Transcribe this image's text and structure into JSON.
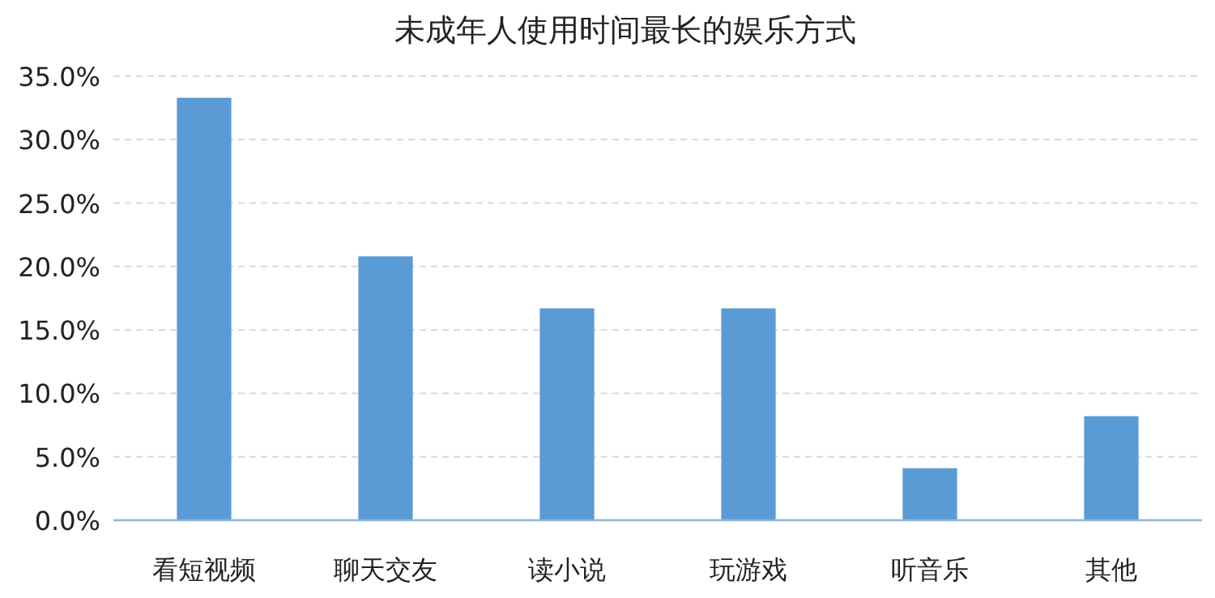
{
  "chart_data": {
    "type": "bar",
    "title": "未成年人使用时间最长的娱乐方式",
    "categories": [
      "看短视频",
      "聊天交友",
      "读小说",
      "玩游戏",
      "听音乐",
      "其他"
    ],
    "values": [
      33.3,
      20.8,
      16.7,
      16.7,
      4.1,
      8.2
    ],
    "color": "#5b9bd5",
    "ylim": [
      0,
      35
    ],
    "yticks": [
      {
        "value": 0,
        "label": "0.0%"
      },
      {
        "value": 5,
        "label": "5.0%"
      },
      {
        "value": 10,
        "label": "10.0%"
      },
      {
        "value": 15,
        "label": "15.0%"
      },
      {
        "value": 20,
        "label": "20.0%"
      },
      {
        "value": 25,
        "label": "25.0%"
      },
      {
        "value": 30,
        "label": "30.0%"
      },
      {
        "value": 35,
        "label": "35.0%"
      }
    ],
    "grid": "y"
  }
}
